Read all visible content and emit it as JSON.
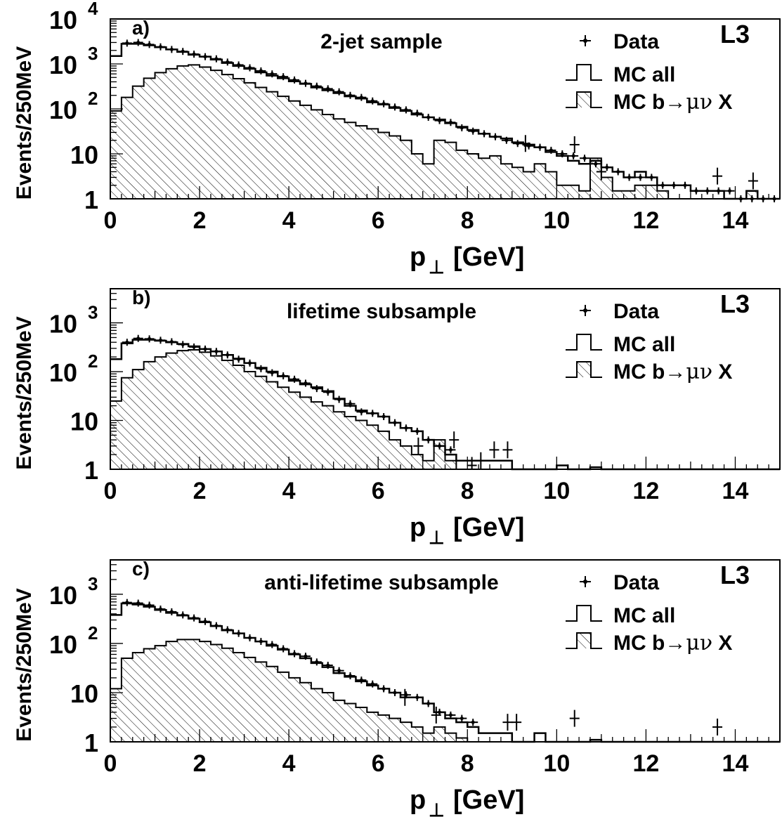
{
  "chart_data": [
    {
      "type": "histogram",
      "panel_label": "a)",
      "title": "2-jet sample",
      "experiment": "L3",
      "xlabel_main": "p",
      "xlabel_sub": "⊥",
      "xlabel_unit": "[GeV]",
      "ylabel": "Events/250MeV",
      "xlim": [
        0,
        15
      ],
      "ylim": [
        1,
        10000
      ],
      "yscale": "log",
      "xticks": [
        "0",
        "2",
        "4",
        "6",
        "8",
        "10",
        "12",
        "14"
      ],
      "yticks": [
        {
          "base": "1",
          "exp": ""
        },
        {
          "base": "10",
          "exp": ""
        },
        {
          "base": "10",
          "exp": "2"
        },
        {
          "base": "10",
          "exp": "3"
        },
        {
          "base": "10",
          "exp": "4"
        }
      ],
      "legend": {
        "data": "Data",
        "mc_all": "MC all",
        "mc_b_prefix": "MC b",
        "mc_b_arrow": "→",
        "mc_b_greek": "μν",
        "mc_b_suffix": "X"
      },
      "bin_width": 0.25,
      "x_bin_centers": [
        0.125,
        0.375,
        0.625,
        0.875,
        1.125,
        1.375,
        1.625,
        1.875,
        2.125,
        2.375,
        2.625,
        2.875,
        3.125,
        3.375,
        3.625,
        3.875,
        4.125,
        4.375,
        4.625,
        4.875,
        5.125,
        5.375,
        5.625,
        5.875,
        6.125,
        6.375,
        6.625,
        6.875,
        7.125,
        7.375,
        7.625,
        7.875,
        8.125,
        8.375,
        8.625,
        8.875,
        9.125,
        9.375,
        9.625,
        9.875,
        10.125,
        10.375,
        10.625,
        10.875,
        11.125,
        11.375,
        11.625,
        11.875,
        12.125,
        12.375,
        12.625,
        12.875,
        13.125,
        13.375,
        13.625,
        13.875,
        14.125,
        14.375,
        14.625,
        14.875
      ],
      "series": [
        {
          "name": "MC all",
          "style": "step",
          "values": [
            1500,
            2800,
            2800,
            2600,
            2350,
            2100,
            1850,
            1600,
            1450,
            1250,
            1050,
            900,
            780,
            650,
            550,
            480,
            410,
            360,
            300,
            260,
            225,
            190,
            170,
            140,
            125,
            105,
            90,
            75,
            65,
            58,
            48,
            40,
            34,
            28,
            24,
            22,
            18,
            16,
            14,
            11,
            9,
            7,
            6,
            7,
            5,
            4,
            3,
            4,
            3,
            2,
            2,
            2,
            1.5,
            1.5,
            1.5,
            1,
            1,
            1.5,
            1,
            1
          ]
        },
        {
          "name": "MC b→μν X",
          "style": "hatched",
          "values": [
            90,
            180,
            320,
            480,
            640,
            780,
            900,
            950,
            850,
            720,
            580,
            470,
            380,
            300,
            240,
            190,
            150,
            120,
            95,
            75,
            60,
            50,
            42,
            36,
            30,
            25,
            20,
            10,
            6,
            20,
            18,
            12,
            10,
            8,
            9,
            6,
            5,
            4,
            6,
            4,
            2,
            2,
            1.5,
            8,
            3,
            1.5,
            1.5,
            2,
            2,
            1.5,
            1,
            1,
            1,
            1,
            1,
            1,
            1,
            1.5,
            1,
            1
          ]
        },
        {
          "name": "Data",
          "style": "points",
          "values": [
            null,
            2900,
            3000,
            2700,
            2400,
            2100,
            1900,
            1650,
            1450,
            1300,
            1100,
            950,
            820,
            700,
            600,
            520,
            440,
            370,
            320,
            280,
            240,
            200,
            180,
            150,
            130,
            110,
            95,
            80,
            65,
            55,
            50,
            38,
            32,
            28,
            24,
            20,
            17,
            15,
            14,
            12,
            10,
            9,
            8,
            6,
            5,
            4,
            3,
            3,
            3,
            2,
            2,
            2,
            1.5,
            1.5,
            1.5,
            1.5,
            1,
            1,
            1,
            1
          ]
        }
      ],
      "data_extra_points": [
        {
          "x": 9.3,
          "y": 17
        },
        {
          "x": 10.4,
          "y": 16
        },
        {
          "x": 11.0,
          "y": 4
        },
        {
          "x": 13.6,
          "y": 3.2
        },
        {
          "x": 14.4,
          "y": 2.5
        }
      ]
    },
    {
      "type": "histogram",
      "panel_label": "b)",
      "title": "lifetime subsample",
      "experiment": "L3",
      "xlabel_main": "p",
      "xlabel_sub": "⊥",
      "xlabel_unit": "[GeV]",
      "ylabel": "Events/250MeV",
      "xlim": [
        0,
        15
      ],
      "ylim": [
        1,
        5000
      ],
      "yscale": "log",
      "xticks": [
        "0",
        "2",
        "4",
        "6",
        "8",
        "10",
        "12",
        "14"
      ],
      "yticks": [
        {
          "base": "1",
          "exp": ""
        },
        {
          "base": "10",
          "exp": ""
        },
        {
          "base": "10",
          "exp": "2"
        },
        {
          "base": "10",
          "exp": "3"
        }
      ],
      "legend": {
        "data": "Data",
        "mc_all": "MC all",
        "mc_b_prefix": "MC b",
        "mc_b_arrow": "→",
        "mc_b_greek": "μν",
        "mc_b_suffix": "X"
      },
      "bin_width": 0.25,
      "x_bin_centers": [
        0.125,
        0.375,
        0.625,
        0.875,
        1.125,
        1.375,
        1.625,
        1.875,
        2.125,
        2.375,
        2.625,
        2.875,
        3.125,
        3.375,
        3.625,
        3.875,
        4.125,
        4.375,
        4.625,
        4.875,
        5.125,
        5.375,
        5.625,
        5.875,
        6.125,
        6.375,
        6.625,
        6.875,
        7.125,
        7.375,
        7.625,
        7.875,
        8.125,
        8.375,
        8.625,
        8.875,
        9.125,
        9.375,
        9.625,
        9.875,
        10.125,
        10.375,
        10.625,
        10.875,
        11.125,
        11.375,
        11.625,
        11.875,
        12.125,
        12.375,
        12.625,
        12.875,
        13.125,
        13.375,
        13.625,
        13.875,
        14.125,
        14.375,
        14.625,
        14.875
      ],
      "series": [
        {
          "name": "MC all",
          "style": "step",
          "values": [
            180,
            380,
            450,
            450,
            430,
            400,
            370,
            330,
            290,
            260,
            220,
            185,
            150,
            120,
            100,
            80,
            65,
            55,
            48,
            40,
            28,
            20,
            16,
            14,
            12,
            9,
            7,
            6,
            4,
            3,
            2,
            1.5,
            1.5,
            1.5,
            1.5,
            1.5,
            1,
            1,
            1,
            1,
            1.2,
            1,
            1,
            1.1,
            1,
            1,
            1,
            1,
            1,
            1,
            1,
            1,
            1,
            1,
            1,
            1,
            1,
            1,
            1,
            1
          ]
        },
        {
          "name": "MC b→μν X",
          "style": "hatched",
          "values": [
            25,
            75,
            110,
            160,
            200,
            240,
            270,
            280,
            250,
            210,
            170,
            135,
            100,
            80,
            62,
            48,
            38,
            30,
            24,
            20,
            15,
            12,
            10,
            8,
            6,
            4,
            3,
            2,
            1.5,
            4,
            1.5,
            1,
            1,
            1,
            1,
            1,
            1,
            1,
            1,
            1,
            1,
            1,
            1,
            1,
            1,
            1,
            1,
            1,
            1,
            1,
            1,
            1,
            1,
            1,
            1,
            1,
            1,
            1,
            1,
            1
          ]
        },
        {
          "name": "Data",
          "style": "points",
          "values": [
            null,
            400,
            480,
            470,
            440,
            410,
            360,
            320,
            290,
            260,
            220,
            180,
            150,
            115,
            95,
            82,
            70,
            58,
            45,
            38,
            27,
            22,
            15,
            14,
            12,
            9,
            7,
            6,
            4,
            3,
            2.5,
            null,
            null,
            null,
            null,
            null,
            null,
            null,
            null,
            null,
            null,
            null,
            null,
            null,
            null,
            null,
            null,
            null,
            null,
            null,
            null,
            null,
            null,
            null,
            null,
            null,
            null,
            null,
            null,
            null
          ]
        }
      ],
      "data_extra_points": [
        {
          "x": 6.9,
          "y": 3
        },
        {
          "x": 7.7,
          "y": 4
        },
        {
          "x": 8.1,
          "y": 1.2
        },
        {
          "x": 8.3,
          "y": 1.5
        },
        {
          "x": 8.6,
          "y": 2.5
        },
        {
          "x": 8.9,
          "y": 2.5
        }
      ]
    },
    {
      "type": "histogram",
      "panel_label": "c)",
      "title": "anti-lifetime subsample",
      "experiment": "L3",
      "xlabel_main": "p",
      "xlabel_sub": "⊥",
      "xlabel_unit": "[GeV]",
      "ylabel": "Events/250MeV",
      "xlim": [
        0,
        15
      ],
      "ylim": [
        1,
        5000
      ],
      "yscale": "log",
      "xticks": [
        "0",
        "2",
        "4",
        "6",
        "8",
        "10",
        "12",
        "14"
      ],
      "yticks": [
        {
          "base": "1",
          "exp": ""
        },
        {
          "base": "10",
          "exp": ""
        },
        {
          "base": "10",
          "exp": "2"
        },
        {
          "base": "10",
          "exp": "3"
        }
      ],
      "legend": {
        "data": "Data",
        "mc_all": "MC all",
        "mc_b_prefix": "MC b",
        "mc_b_arrow": "→",
        "mc_b_greek": "μν",
        "mc_b_suffix": "X"
      },
      "bin_width": 0.25,
      "x_bin_centers": [
        0.125,
        0.375,
        0.625,
        0.875,
        1.125,
        1.375,
        1.625,
        1.875,
        2.125,
        2.375,
        2.625,
        2.875,
        3.125,
        3.375,
        3.625,
        3.875,
        4.125,
        4.375,
        4.625,
        4.875,
        5.125,
        5.375,
        5.625,
        5.875,
        6.125,
        6.375,
        6.625,
        6.875,
        7.125,
        7.375,
        7.625,
        7.875,
        8.125,
        8.375,
        8.625,
        8.875,
        9.125,
        9.375,
        9.625,
        9.875,
        10.125,
        10.375,
        10.625,
        10.875,
        11.125,
        11.375,
        11.625,
        11.875,
        12.125,
        12.375,
        12.625,
        12.875,
        13.125,
        13.375,
        13.625,
        13.875,
        14.125,
        14.375,
        14.625,
        14.875
      ],
      "series": [
        {
          "name": "MC all",
          "style": "step",
          "values": [
            380,
            650,
            620,
            560,
            480,
            420,
            370,
            320,
            270,
            225,
            185,
            160,
            130,
            110,
            90,
            75,
            60,
            50,
            40,
            33,
            25,
            21,
            17,
            14,
            12,
            10,
            8,
            8,
            6,
            4,
            3,
            2.5,
            2,
            1.5,
            1.5,
            1.5,
            1,
            1,
            1.5,
            1,
            1,
            1,
            1,
            1.1,
            1,
            1,
            1,
            1,
            1,
            1,
            1,
            1,
            1,
            1,
            1,
            1,
            1,
            1,
            1,
            1
          ]
        },
        {
          "name": "MC b→μν X",
          "style": "hatched",
          "values": [
            12,
            50,
            65,
            78,
            90,
            110,
            120,
            120,
            110,
            95,
            80,
            65,
            52,
            42,
            34,
            26,
            20,
            16,
            12,
            10,
            7,
            6,
            5,
            4,
            3.5,
            3,
            2.5,
            2,
            1.5,
            2,
            1.5,
            1.2,
            1,
            1,
            1,
            1,
            1,
            1,
            1,
            1,
            1,
            1,
            1,
            1,
            1,
            1,
            1,
            1,
            1,
            1,
            1,
            1,
            1,
            1,
            1,
            1,
            1,
            1,
            1,
            1
          ]
        },
        {
          "name": "Data",
          "style": "points",
          "values": [
            null,
            680,
            660,
            600,
            500,
            440,
            380,
            330,
            280,
            230,
            190,
            160,
            130,
            110,
            95,
            78,
            62,
            55,
            42,
            36,
            28,
            22,
            18,
            15,
            12,
            10,
            9,
            8,
            6,
            4,
            3.5,
            3,
            2.5,
            null,
            null,
            null,
            null,
            null,
            null,
            null,
            null,
            null,
            null,
            null,
            null,
            null,
            null,
            null,
            null,
            null,
            null,
            null,
            null,
            null,
            null,
            null,
            null,
            null,
            null,
            null
          ]
        }
      ],
      "data_extra_points": [
        {
          "x": 6.6,
          "y": 8
        },
        {
          "x": 7.3,
          "y": 3.5
        },
        {
          "x": 8.9,
          "y": 2.5
        },
        {
          "x": 9.1,
          "y": 2.5
        },
        {
          "x": 10.4,
          "y": 3
        },
        {
          "x": 13.6,
          "y": 2
        }
      ]
    }
  ]
}
